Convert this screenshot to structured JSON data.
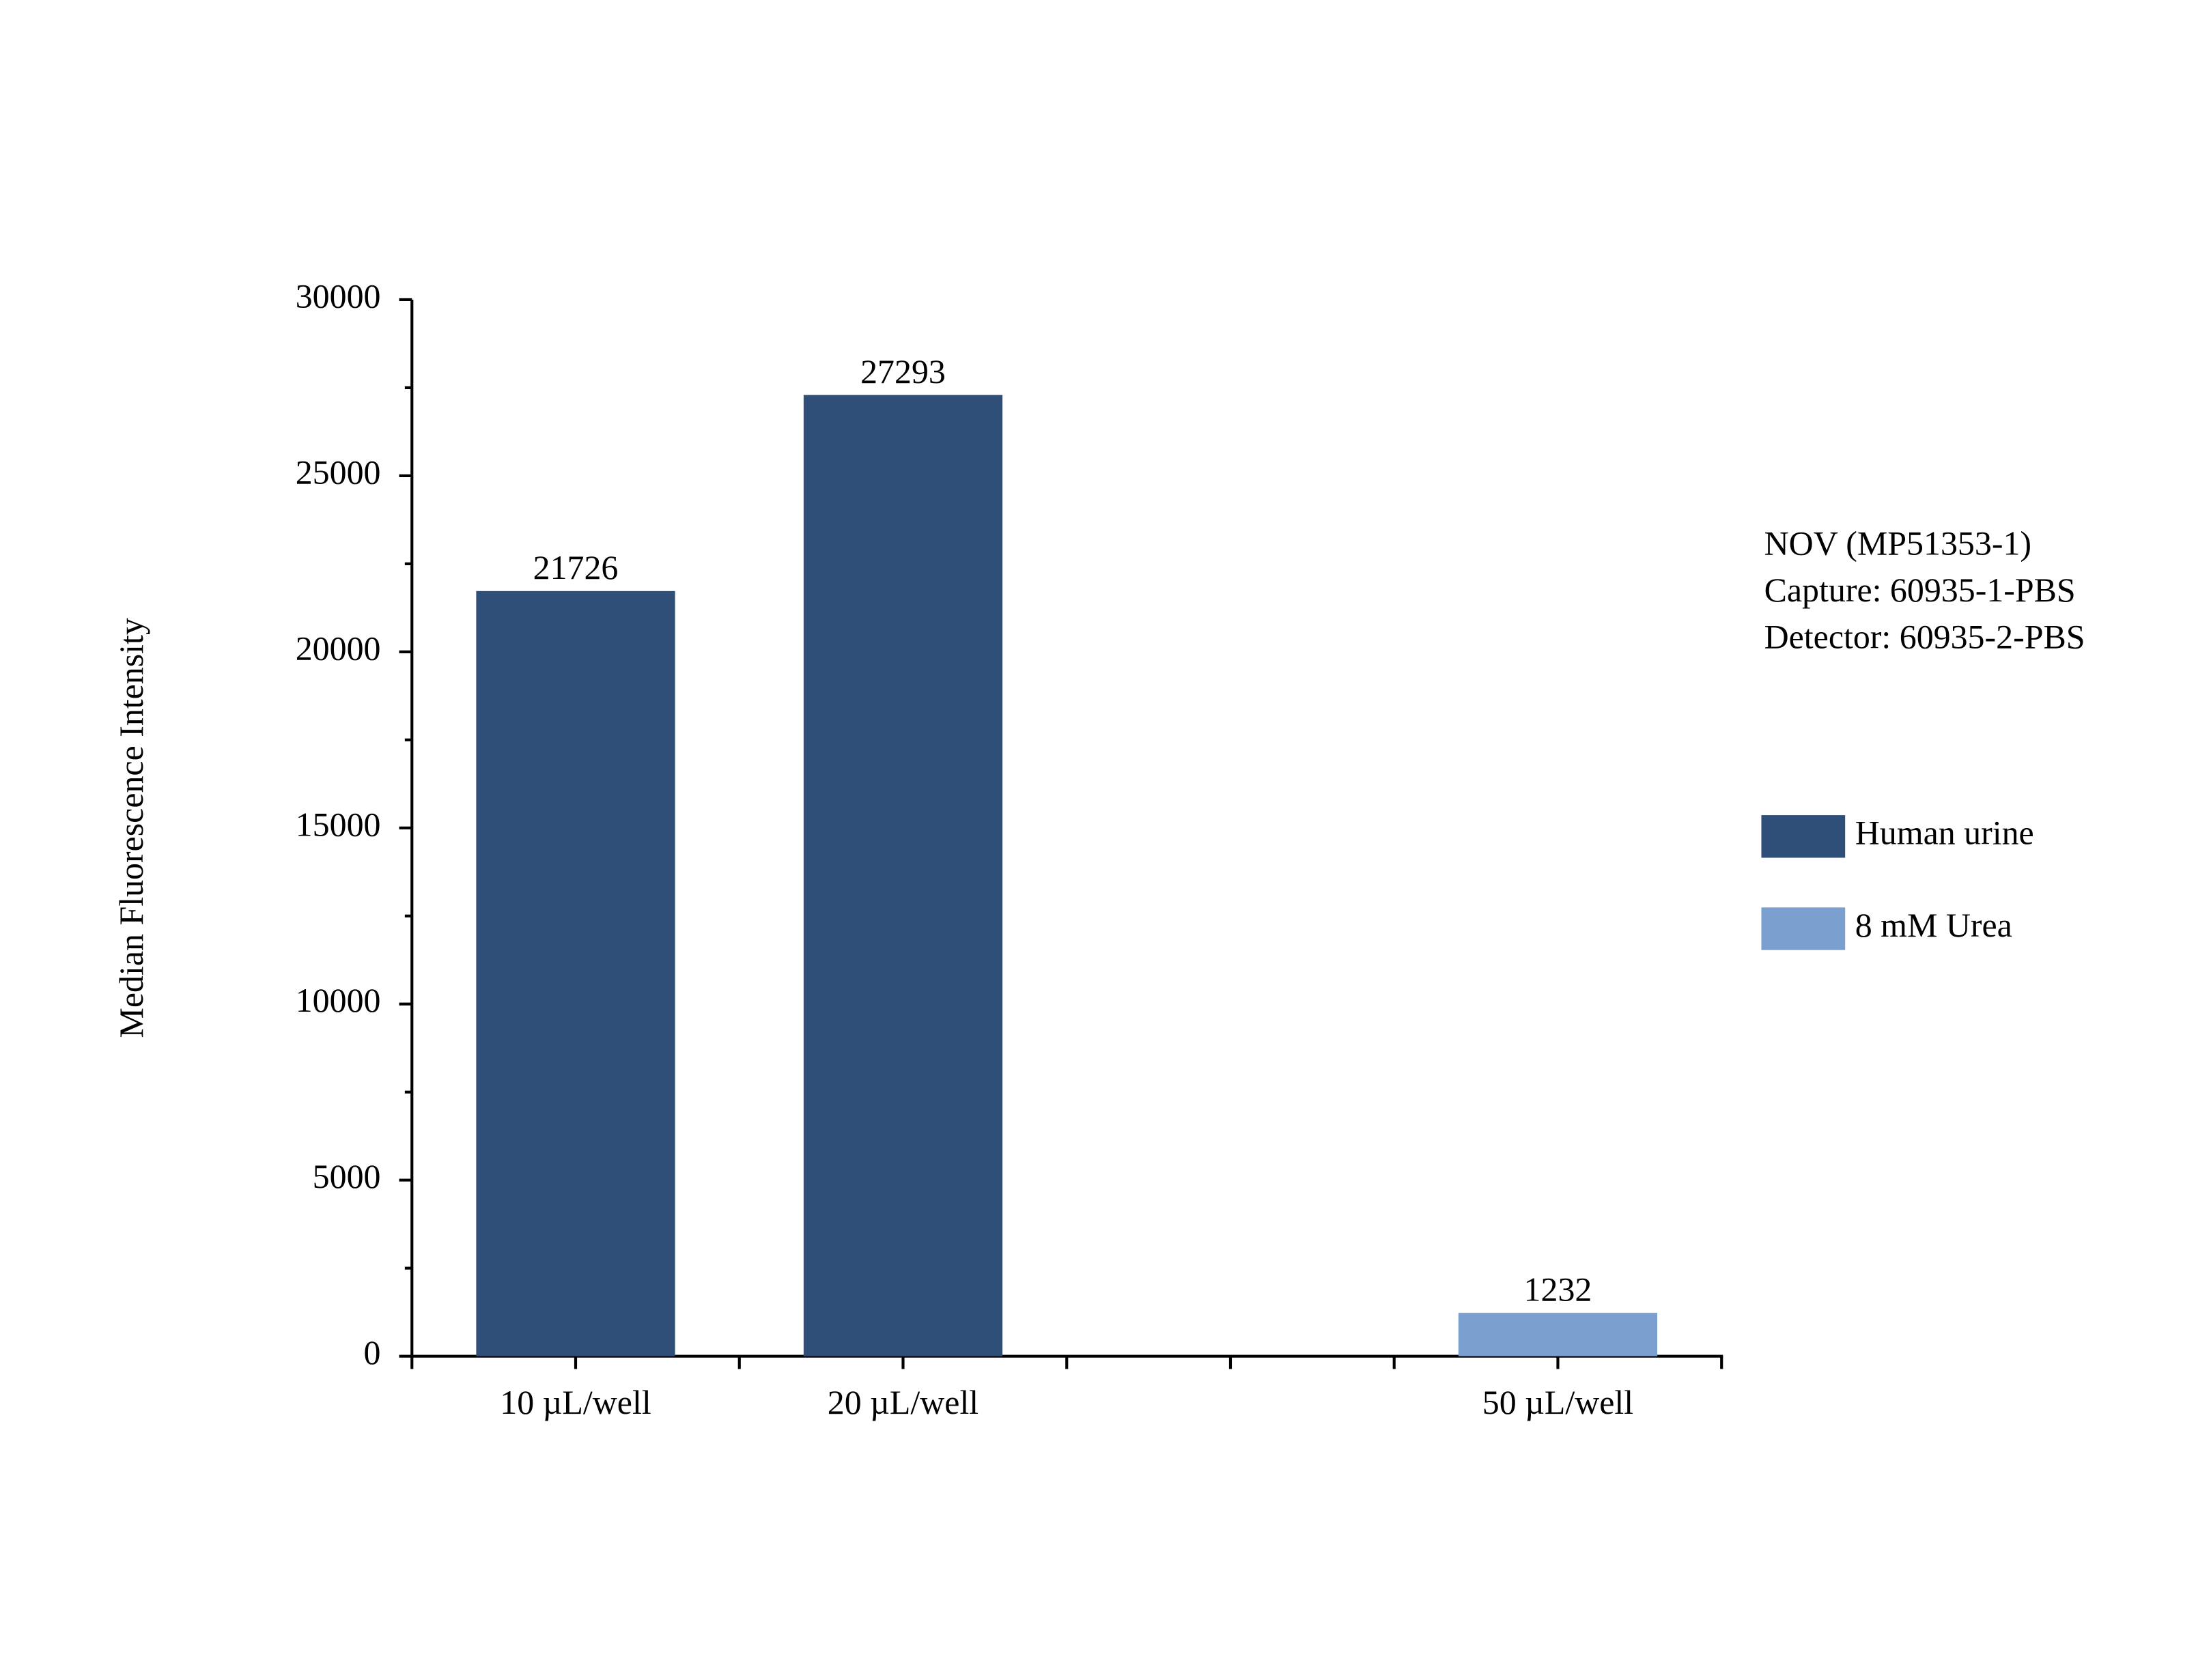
{
  "chart_data": {
    "type": "bar",
    "categories": [
      "10 µL/well",
      "20 µL/well",
      null,
      "50 µL/well"
    ],
    "series": [
      {
        "name": "Human urine",
        "color": "#2f4f79",
        "values": [
          21726,
          27293,
          null,
          null
        ]
      },
      {
        "name": "8 mM Urea",
        "color": "#7b9fcf",
        "values": [
          null,
          null,
          null,
          1232
        ]
      }
    ],
    "y_label": "Median Fluorescence Intensity",
    "annotation": [
      "NOV (MP51353-1)",
      "Capture: 60935-1-PBS",
      "Detector: 60935-2-PBS"
    ],
    "ylim": [
      0,
      30000
    ],
    "yticks": [
      0,
      5000,
      10000,
      15000,
      20000,
      25000,
      30000
    ],
    "grid": false,
    "legend": "right",
    "data_labels": true
  }
}
